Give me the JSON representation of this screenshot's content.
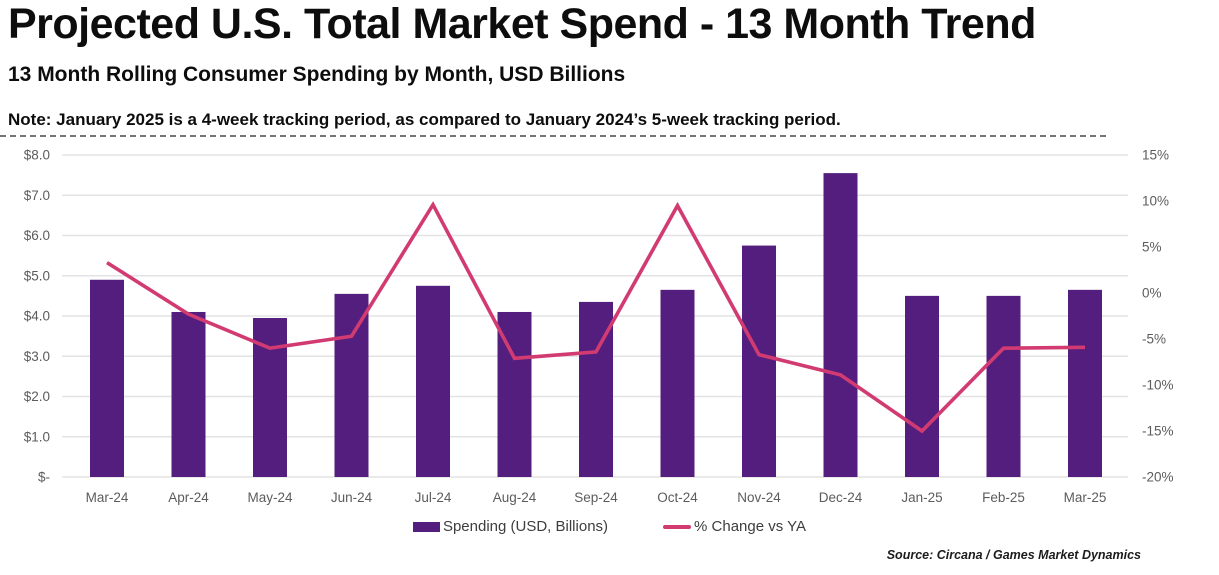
{
  "header": {
    "title": "Projected U.S. Total Market Spend - 13 Month Trend",
    "subtitle": "13 Month Rolling Consumer Spending by Month, USD Billions",
    "note": "Note: January 2025 is a 4-week tracking period, as compared to January 2024’s 5-week tracking period."
  },
  "chart_data": {
    "type": "bar",
    "subtype": "combo-bar-line",
    "title": "Projected U.S. Total Market Spend - 13 Month Trend",
    "categories": [
      "Mar-24",
      "Apr-24",
      "May-24",
      "Jun-24",
      "Jul-24",
      "Aug-24",
      "Sep-24",
      "Oct-24",
      "Nov-24",
      "Dec-24",
      "Jan-25",
      "Feb-25",
      "Mar-25"
    ],
    "series": [
      {
        "name": "Spending (USD, Billions)",
        "type": "bar",
        "axis": "left",
        "color": "#541E7E",
        "values": [
          4.9,
          4.1,
          3.95,
          4.55,
          4.75,
          4.1,
          4.35,
          4.65,
          5.75,
          7.55,
          4.5,
          4.5,
          4.65
        ]
      },
      {
        "name": "% Change vs YA",
        "type": "line",
        "axis": "right",
        "color": "#D23B72",
        "values": [
          3.3,
          -2.3,
          -6.0,
          -4.7,
          9.6,
          -7.1,
          -6.4,
          9.5,
          -6.7,
          -8.9,
          -15.0,
          -6.0,
          -5.9
        ]
      }
    ],
    "left_axis": {
      "ticks": [
        "$8.0",
        "$7.0",
        "$6.0",
        "$5.0",
        "$4.0",
        "$3.0",
        "$2.0",
        "$1.0",
        "$-"
      ],
      "tick_values": [
        8,
        7,
        6,
        5,
        4,
        3,
        2,
        1,
        0
      ],
      "min": 0,
      "max": 8
    },
    "right_axis": {
      "ticks": [
        "15%",
        "10%",
        "5%",
        "0%",
        "-5%",
        "-10%",
        "-15%",
        "-20%"
      ],
      "tick_values": [
        15,
        10,
        5,
        0,
        -5,
        -10,
        -15,
        -20
      ],
      "min": -20,
      "max": 15
    },
    "grid": true,
    "legend_position": "bottom"
  },
  "source": "Source: Circana / Games Market Dynamics"
}
